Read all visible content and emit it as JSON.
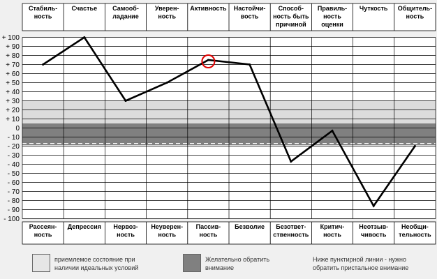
{
  "chart_data": {
    "type": "line",
    "top_labels": [
      "Стабиль-\nность",
      "Счастье",
      "Самооб-\nладание",
      "Уверен-\nность",
      "Активность",
      "Настойчи-\nвость",
      "Способ-\nность быть\nпричиной",
      "Правиль-\nность\nоценки",
      "Чуткость",
      "Общитель-\nность"
    ],
    "bottom_labels": [
      "Рассеян-\nность",
      "Депрессия",
      "Нервоз-\nность",
      "Неуверен-\nность",
      "Пассив-\nность",
      "Безволие",
      "Безответ-\nственность",
      "Критич-\nность",
      "Неотзыв-\nчивость",
      "Необщи-\nтельность"
    ],
    "values": [
      70,
      100,
      30,
      50,
      75,
      70,
      -37,
      -3,
      -86,
      -20
    ],
    "highlight_index": 4,
    "y_ticks": [
      "+ 100",
      "+ 90",
      "+ 80",
      "+ 70",
      "+ 60",
      "+ 50",
      "+ 40",
      "+ 30",
      "+ 20",
      "+ 10",
      "0",
      "- 10",
      "- 20",
      "- 30",
      "- 40",
      "- 50",
      "- 60",
      "- 70",
      "- 80",
      "- 90",
      "- 100"
    ],
    "ylim": [
      -100,
      100
    ],
    "light_band": [
      5,
      30
    ],
    "dark_band": [
      -19,
      5
    ],
    "dashed_line_value": -17,
    "grid": true,
    "colors": {
      "line": "#000000",
      "light_band": "#dcdcdc",
      "dark_band": "#808080",
      "highlight": "#e00000"
    }
  },
  "legend": [
    {
      "text": "приемлемое состояние при\nналичии идеальных условий",
      "color": "#e6e6e6"
    },
    {
      "text": "Желательно обратить\nвнимание",
      "color": "#808080"
    },
    {
      "text": "Ниже пунктирной линии - нужно\nобратить пристальное внимание"
    }
  ]
}
